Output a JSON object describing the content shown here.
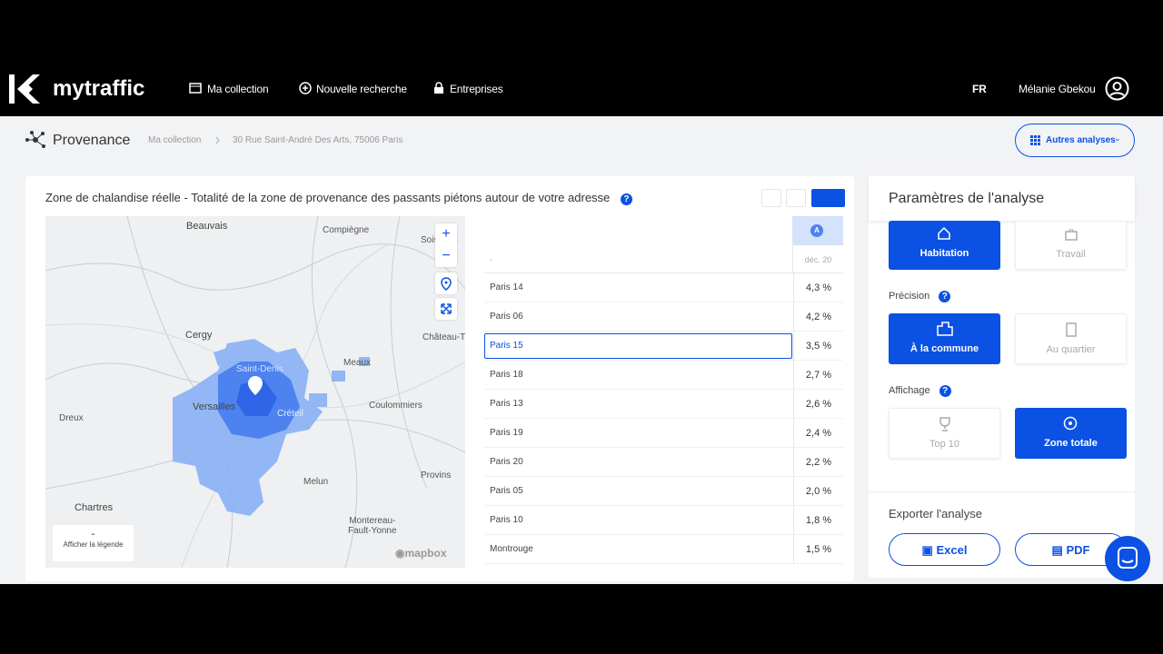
{
  "nav": {
    "brand": "mytraffic",
    "items": [
      "Ma collection",
      "Nouvelle recherche",
      "Entreprises"
    ],
    "language": "FR",
    "user": "Mélanie Gbekou"
  },
  "header": {
    "title": "Provenance",
    "breadcrumb": [
      "Ma collection",
      "30 Rue Saint-André Des Arts, 75006 Paris"
    ],
    "menu_button": "Autres analyses"
  },
  "card": {
    "title": "Zone de chalandise réelle - Totalité de la zone de provenance des passants piétons autour de votre adresse",
    "map": {
      "places": [
        "Beauvais",
        "Compiègne",
        "Soissons",
        "Cergy",
        "Château-T",
        "Meaux",
        "Saint-Denis",
        "Versailles",
        "Créteil",
        "Dreux",
        "Coulommiers",
        "Melun",
        "Provins",
        "Chartres",
        "Montereau-\nFault-Yonne"
      ],
      "legend_toggle": "Afficher la légende",
      "attribution": "mapbox"
    },
    "table": {
      "column_badge": "A",
      "row_header": "-",
      "column_header": "déc. 20",
      "rows": [
        [
          "Paris 14",
          "4,3 %"
        ],
        [
          "Paris 06",
          "4,2 %"
        ],
        [
          "Paris 15",
          "3,5 %"
        ],
        [
          "Paris 18",
          "2,7 %"
        ],
        [
          "Paris 13",
          "2,6 %"
        ],
        [
          "Paris 19",
          "2,4 %"
        ],
        [
          "Paris 20",
          "2,2 %"
        ],
        [
          "Paris 05",
          "2,0 %"
        ],
        [
          "Paris 10",
          "1,8 %"
        ],
        [
          "Montrouge",
          "1,5 %"
        ]
      ]
    }
  },
  "panel": {
    "title": "Paramètres de l'analyse",
    "mode": {
      "options": [
        "Habitation",
        "Travail"
      ]
    },
    "precision": {
      "label": "Précision",
      "options": [
        "À la commune",
        "Au quartier"
      ]
    },
    "display": {
      "label": "Affichage",
      "options": [
        "Top 10",
        "Zone totale"
      ]
    },
    "export": {
      "label": "Exporter l'analyse",
      "options": [
        "Excel",
        "PDF"
      ]
    }
  }
}
